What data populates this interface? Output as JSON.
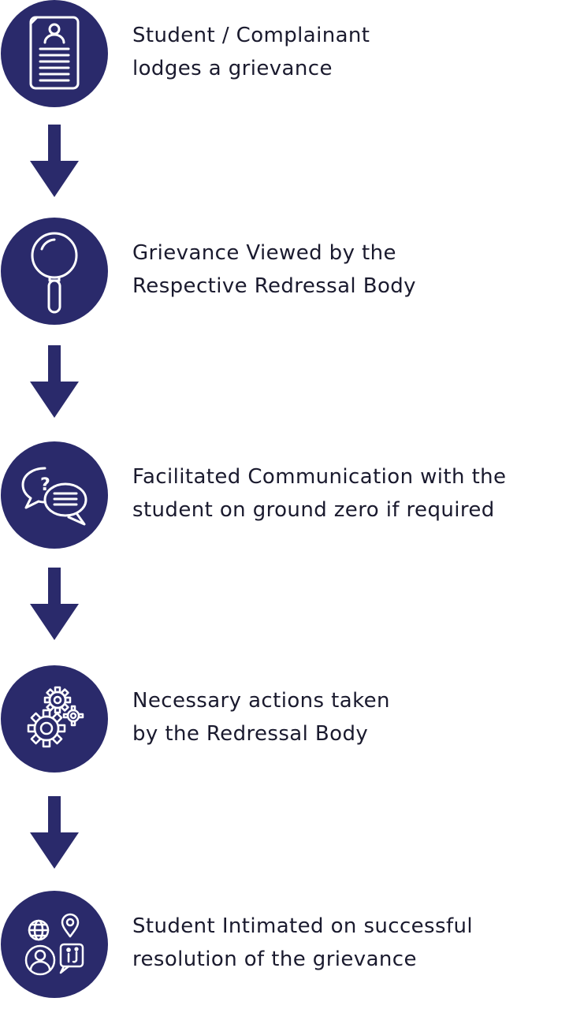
{
  "colors": {
    "circle": "#2a2a6b",
    "arrow": "#2a2a6b",
    "text": "#1a1a2e",
    "icon_stroke": "#ffffff"
  },
  "steps": [
    {
      "icon": "document-user-icon",
      "lines": [
        "Student / Complainant",
        "lodges a grievance"
      ]
    },
    {
      "icon": "magnifier-icon",
      "lines": [
        "Grievance Viewed by the",
        "Respective Redressal Body"
      ]
    },
    {
      "icon": "chat-bubbles-icon",
      "lines": [
        "Facilitated Communication with the",
        "student on ground zero if required"
      ]
    },
    {
      "icon": "gears-icon",
      "lines": [
        "Necessary actions taken",
        "by the Redressal Body"
      ]
    },
    {
      "icon": "user-globe-location-info-icon",
      "lines": [
        "Student Intimated on successful",
        "resolution of the grievance"
      ]
    }
  ]
}
